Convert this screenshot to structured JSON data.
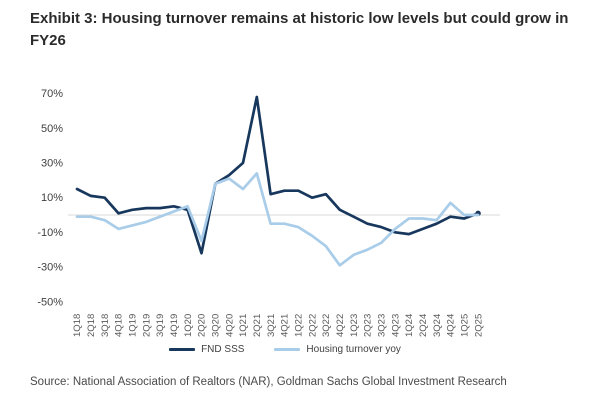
{
  "title": "Exhibit 3: Housing turnover remains at historic low levels but could grow in FY26",
  "source": "Source: National Association of Realtors (NAR), Goldman Sachs Global Investment Research",
  "colors": {
    "fnd_sss_line": "#17375d",
    "housing_turnover_line": "#a9cde9",
    "gridline": "#d9d9d9",
    "y_axis_text": "#404040",
    "x_axis_text": "#595959",
    "title_text": "#2b2b2b",
    "source_text": "#4a4a4a"
  },
  "legend": {
    "items": [
      "FND SSS",
      "Housing turnover yoy"
    ]
  },
  "chart_data": {
    "type": "line",
    "title": "Exhibit 3: Housing turnover remains at historic low levels but could grow in FY26",
    "xlabel": "",
    "ylabel": "",
    "ylim": [
      -55,
      75
    ],
    "yticks": [
      70,
      50,
      30,
      10,
      -10,
      -30,
      -50
    ],
    "ytick_labels": [
      "70%",
      "50%",
      "30%",
      "10%",
      "-10%",
      "-30%",
      "-50%"
    ],
    "grid": "horizontal zero line only",
    "legend_position": "bottom-center",
    "x_tick_rotation": 90,
    "categories": [
      "1Q18",
      "2Q18",
      "3Q18",
      "4Q18",
      "1Q19",
      "2Q19",
      "3Q19",
      "4Q19",
      "1Q20",
      "2Q20",
      "3Q20",
      "4Q20",
      "1Q21",
      "2Q21",
      "3Q21",
      "4Q21",
      "1Q22",
      "2Q22",
      "3Q22",
      "4Q22",
      "1Q23",
      "2Q23",
      "3Q23",
      "4Q23",
      "1Q24",
      "2Q24",
      "3Q24",
      "4Q24",
      "1Q25",
      "2Q25"
    ],
    "series": [
      {
        "name": "FND SSS",
        "color": "#17375d",
        "end_marker": true,
        "values": [
          15,
          11,
          10,
          1,
          3,
          4,
          4,
          5,
          3,
          -22,
          18,
          23,
          30,
          68,
          12,
          14,
          14,
          10,
          12,
          3,
          -1,
          -5,
          -7,
          -10,
          -11,
          -8,
          -5,
          -1,
          -2,
          1
        ]
      },
      {
        "name": "Housing turnover yoy",
        "color": "#a9cde9",
        "end_marker": false,
        "values": [
          -1,
          -1,
          -3,
          -8,
          -6,
          -4,
          -1,
          2,
          5,
          -15,
          18,
          21,
          15,
          24,
          -5,
          -5,
          -7,
          -12,
          -18,
          -29,
          -23,
          -20,
          -16,
          -8,
          -2,
          -2,
          -3,
          7,
          0,
          0
        ]
      }
    ]
  }
}
